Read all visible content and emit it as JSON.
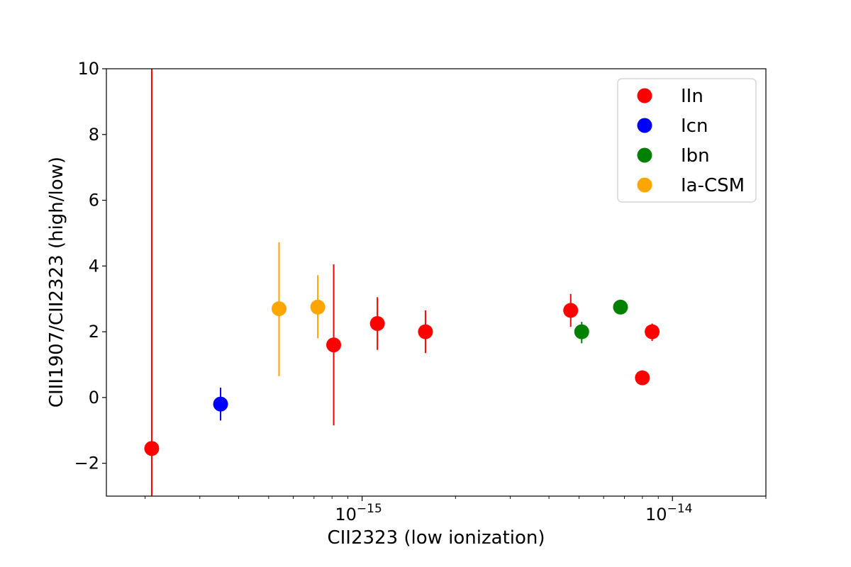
{
  "chart_data": {
    "type": "scatter",
    "xlabel": "CII2323 (low ionization)",
    "ylabel": "CIII1907/CII2323 (high/low)",
    "xscale": "log",
    "xlim": [
      1.5e-16,
      2e-14
    ],
    "ylim": [
      -3,
      10
    ],
    "x_tick_labels": [
      {
        "value": 1e-15,
        "label": "10−15",
        "base": "10",
        "exp": "−15"
      },
      {
        "value": 1e-14,
        "label": "10−14",
        "base": "10",
        "exp": "−14"
      }
    ],
    "y_ticks": [
      {
        "value": 10,
        "label": "10"
      },
      {
        "value": 8,
        "label": "8"
      },
      {
        "value": 6,
        "label": "6"
      },
      {
        "value": 4,
        "label": "4"
      },
      {
        "value": 2,
        "label": "2"
      },
      {
        "value": 0,
        "label": "0"
      },
      {
        "value": -2,
        "label": "−2"
      }
    ],
    "grid": false,
    "legend_position": "top-right",
    "series": [
      {
        "name": "IIn",
        "color": "#ff0000",
        "points": [
          {
            "x": 2.1e-16,
            "y": -1.55,
            "ylo": -3.0,
            "yhi": 10.0
          },
          {
            "x": 8.1e-16,
            "y": 1.6,
            "ylo": -0.85,
            "yhi": 4.05
          },
          {
            "x": 1.12e-15,
            "y": 2.25,
            "ylo": 1.45,
            "yhi": 3.05
          },
          {
            "x": 1.6e-15,
            "y": 2.0,
            "ylo": 1.35,
            "yhi": 2.65
          },
          {
            "x": 4.7e-15,
            "y": 2.65,
            "ylo": 2.15,
            "yhi": 3.15
          },
          {
            "x": 8e-15,
            "y": 0.6,
            "ylo": 0.6,
            "yhi": 0.6
          },
          {
            "x": 8.6e-15,
            "y": 2.0,
            "ylo": 1.72,
            "yhi": 2.25
          }
        ]
      },
      {
        "name": "Icn",
        "color": "#0000ff",
        "points": [
          {
            "x": 3.5e-16,
            "y": -0.2,
            "ylo": -0.7,
            "yhi": 0.3
          }
        ]
      },
      {
        "name": "Ibn",
        "color": "#008000",
        "points": [
          {
            "x": 5.1e-15,
            "y": 2.0,
            "ylo": 1.65,
            "yhi": 2.3
          },
          {
            "x": 6.8e-15,
            "y": 2.75,
            "ylo": 2.75,
            "yhi": 2.75
          }
        ]
      },
      {
        "name": "Ia-CSM",
        "color": "#ffa500",
        "points": [
          {
            "x": 5.4e-16,
            "y": 2.7,
            "ylo": 0.65,
            "yhi": 4.72
          },
          {
            "x": 7.2e-16,
            "y": 2.75,
            "ylo": 1.8,
            "yhi": 3.72
          }
        ]
      }
    ]
  }
}
